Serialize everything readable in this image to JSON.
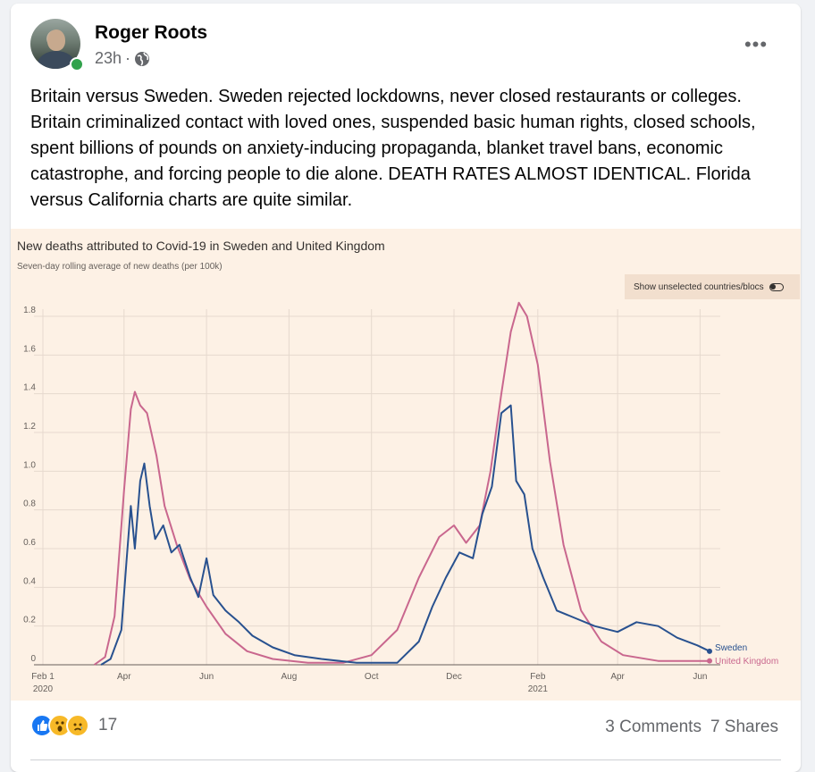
{
  "post": {
    "author": "Roger Roots",
    "time": "23h",
    "privacy_icon": "globe-icon",
    "text": "Britain versus Sweden.  Sweden rejected lockdowns, never closed restaurants or colleges.  Britain criminalized contact with loved ones, suspended basic human rights, closed schools, spent billions of pounds on anxiety-inducing propaganda, blanket travel bans, economic catastrophe, and forcing people to die alone.  DEATH RATES ALMOST IDENTICAL.   Florida versus California charts are quite similar."
  },
  "chart": {
    "toggle_label": "Show unselected countries/blocs"
  },
  "chart_data": {
    "type": "line",
    "title": "New deaths attributed to Covid-19 in Sweden and United Kingdom",
    "subtitle": "Seven-day rolling average of new deaths (per 100k)",
    "ylim": [
      0,
      1.8
    ],
    "yticks": [
      "0",
      "0.2",
      "0.4",
      "0.6",
      "0.8",
      "1.0",
      "1.2",
      "1.4",
      "1.6",
      "1.8"
    ],
    "xticks": [
      {
        "date": "2020-02-01",
        "label": "Feb 1",
        "sub": "2020"
      },
      {
        "date": "2020-04-01",
        "label": "Apr",
        "sub": ""
      },
      {
        "date": "2020-06-01",
        "label": "Jun",
        "sub": ""
      },
      {
        "date": "2020-08-01",
        "label": "Aug",
        "sub": ""
      },
      {
        "date": "2020-10-01",
        "label": "Oct",
        "sub": ""
      },
      {
        "date": "2020-12-01",
        "label": "Dec",
        "sub": ""
      },
      {
        "date": "2021-02-01",
        "label": "Feb",
        "sub": "2021"
      },
      {
        "date": "2021-04-01",
        "label": "Apr",
        "sub": ""
      },
      {
        "date": "2021-06-01",
        "label": "Jun",
        "sub": ""
      }
    ],
    "x_range": [
      "2020-02-01",
      "2021-06-08"
    ],
    "grid": true,
    "series": [
      {
        "name": "United Kingdom",
        "color": "#c9678e",
        "points": [
          [
            "2020-03-10",
            0.0
          ],
          [
            "2020-03-18",
            0.04
          ],
          [
            "2020-03-25",
            0.25
          ],
          [
            "2020-04-01",
            0.9
          ],
          [
            "2020-04-06",
            1.32
          ],
          [
            "2020-04-09",
            1.41
          ],
          [
            "2020-04-13",
            1.34
          ],
          [
            "2020-04-18",
            1.3
          ],
          [
            "2020-04-25",
            1.08
          ],
          [
            "2020-05-01",
            0.82
          ],
          [
            "2020-05-10",
            0.62
          ],
          [
            "2020-05-20",
            0.44
          ],
          [
            "2020-06-01",
            0.3
          ],
          [
            "2020-06-15",
            0.16
          ],
          [
            "2020-07-01",
            0.07
          ],
          [
            "2020-07-20",
            0.03
          ],
          [
            "2020-08-15",
            0.01
          ],
          [
            "2020-09-10",
            0.01
          ],
          [
            "2020-10-01",
            0.05
          ],
          [
            "2020-10-20",
            0.18
          ],
          [
            "2020-11-05",
            0.45
          ],
          [
            "2020-11-20",
            0.66
          ],
          [
            "2020-12-01",
            0.72
          ],
          [
            "2020-12-10",
            0.63
          ],
          [
            "2020-12-20",
            0.72
          ],
          [
            "2020-12-28",
            1.0
          ],
          [
            "2021-01-05",
            1.4
          ],
          [
            "2021-01-12",
            1.72
          ],
          [
            "2021-01-18",
            1.87
          ],
          [
            "2021-01-24",
            1.8
          ],
          [
            "2021-02-01",
            1.55
          ],
          [
            "2021-02-10",
            1.05
          ],
          [
            "2021-02-20",
            0.62
          ],
          [
            "2021-03-05",
            0.28
          ],
          [
            "2021-03-20",
            0.12
          ],
          [
            "2021-04-05",
            0.05
          ],
          [
            "2021-05-01",
            0.02
          ],
          [
            "2021-06-08",
            0.02
          ]
        ]
      },
      {
        "name": "Sweden",
        "color": "#28518f",
        "points": [
          [
            "2020-03-15",
            0.0
          ],
          [
            "2020-03-22",
            0.03
          ],
          [
            "2020-03-30",
            0.18
          ],
          [
            "2020-04-03",
            0.55
          ],
          [
            "2020-04-06",
            0.82
          ],
          [
            "2020-04-09",
            0.6
          ],
          [
            "2020-04-13",
            0.95
          ],
          [
            "2020-04-16",
            1.04
          ],
          [
            "2020-04-20",
            0.82
          ],
          [
            "2020-04-24",
            0.65
          ],
          [
            "2020-04-30",
            0.72
          ],
          [
            "2020-05-06",
            0.58
          ],
          [
            "2020-05-12",
            0.62
          ],
          [
            "2020-05-20",
            0.45
          ],
          [
            "2020-05-26",
            0.35
          ],
          [
            "2020-06-01",
            0.55
          ],
          [
            "2020-06-06",
            0.36
          ],
          [
            "2020-06-15",
            0.28
          ],
          [
            "2020-06-25",
            0.22
          ],
          [
            "2020-07-05",
            0.15
          ],
          [
            "2020-07-20",
            0.09
          ],
          [
            "2020-08-05",
            0.05
          ],
          [
            "2020-08-25",
            0.03
          ],
          [
            "2020-09-20",
            0.01
          ],
          [
            "2020-10-20",
            0.01
          ],
          [
            "2020-11-05",
            0.12
          ],
          [
            "2020-11-15",
            0.3
          ],
          [
            "2020-11-25",
            0.45
          ],
          [
            "2020-12-05",
            0.58
          ],
          [
            "2020-12-15",
            0.55
          ],
          [
            "2020-12-22",
            0.78
          ],
          [
            "2020-12-29",
            0.92
          ],
          [
            "2021-01-05",
            1.3
          ],
          [
            "2021-01-12",
            1.34
          ],
          [
            "2021-01-16",
            0.95
          ],
          [
            "2021-01-22",
            0.88
          ],
          [
            "2021-01-28",
            0.6
          ],
          [
            "2021-02-05",
            0.45
          ],
          [
            "2021-02-15",
            0.28
          ],
          [
            "2021-03-01",
            0.24
          ],
          [
            "2021-03-15",
            0.2
          ],
          [
            "2021-04-01",
            0.17
          ],
          [
            "2021-04-15",
            0.22
          ],
          [
            "2021-05-01",
            0.2
          ],
          [
            "2021-05-15",
            0.14
          ],
          [
            "2021-05-30",
            0.1
          ],
          [
            "2021-06-08",
            0.07
          ]
        ]
      }
    ]
  },
  "footer": {
    "reaction_count": "17",
    "comments": "3 Comments",
    "shares": "7 Shares",
    "reaction_icons": [
      "like-icon",
      "wow-icon",
      "sad-icon"
    ]
  }
}
